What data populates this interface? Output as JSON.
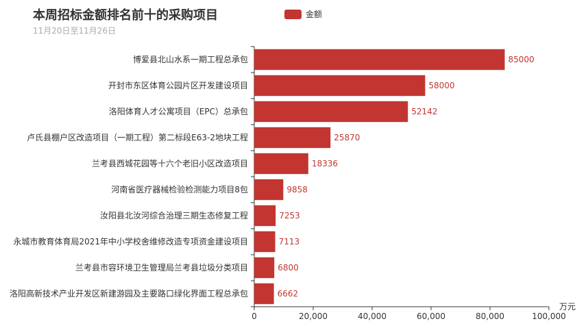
{
  "chart_data": {
    "type": "bar",
    "orientation": "horizontal",
    "title": "本周招标金额排名前十的采购项目",
    "subtitle": "11月20日至11月26日",
    "xlabel": "万元",
    "ylabel": "",
    "xlim": [
      0,
      100000
    ],
    "xticks": [
      "0",
      "20,000",
      "40,000",
      "60,000",
      "80,000",
      "100,000"
    ],
    "legend": {
      "position": "top-center",
      "entries": [
        "金额"
      ]
    },
    "grid": false,
    "bar_color": "#c23531",
    "categories": [
      "博爱县北山水系一期工程总承包",
      "开封市东区体育公园片区开发建设项目",
      "洛阳体育人才公寓项目（EPC）总承包",
      "卢氏县棚户区改造项目（一期工程）第二标段E63-2地块工程",
      "兰考县西城花园等十六个老旧小区改造项目",
      "河南省医疗器械检验检测能力项目8包",
      "汝阳县北汝河综合治理三期生态修复工程",
      "永城市教育体育局2021年中小学校舍维修改造专项资金建设项目",
      "兰考县市容环境卫生管理局兰考县垃圾分类项目",
      "洛阳高新技术产业开发区新建游园及主要路口绿化界面工程总承包"
    ],
    "series": [
      {
        "name": "金额",
        "values": [
          85000,
          58000,
          52142,
          25870,
          18336,
          9858,
          7253,
          7113,
          6800,
          6662
        ]
      }
    ]
  }
}
